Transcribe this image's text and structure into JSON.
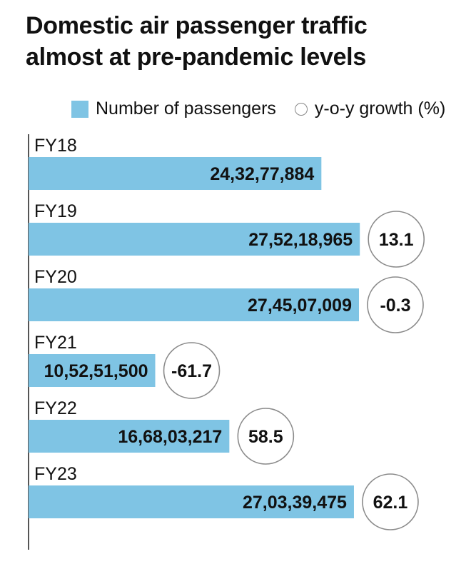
{
  "title_line1": "Domestic air passenger traffic",
  "title_line2": "almost at pre-pandemic levels",
  "legend": {
    "bars": "Number of passengers",
    "circles": "y-o-y growth (%)"
  },
  "colors": {
    "bar": "#7fc4e4",
    "circle_stroke": "#8a8a8a",
    "axis": "#555555",
    "text": "#111111"
  },
  "chart_data": {
    "type": "bar",
    "orientation": "horizontal",
    "categories": [
      "FY18",
      "FY19",
      "FY20",
      "FY21",
      "FY22",
      "FY23"
    ],
    "series": [
      {
        "name": "Number of passengers",
        "values": [
          243277884,
          275218965,
          274507009,
          105251500,
          166803217,
          270339475
        ],
        "labels": [
          "24,32,77,884",
          "27,52,18,965",
          "27,45,07,009",
          "10,52,51,500",
          "16,68,03,217",
          "27,03,39,475"
        ]
      },
      {
        "name": "y-o-y growth (%)",
        "values": [
          null,
          13.1,
          -0.3,
          -61.7,
          58.5,
          62.1
        ],
        "labels": [
          "",
          "13.1",
          "-0.3",
          "-61.7",
          "58.5",
          "62.1"
        ]
      }
    ],
    "xlim": [
      0,
      300000000
    ],
    "grid": false,
    "legend_position": "top"
  }
}
